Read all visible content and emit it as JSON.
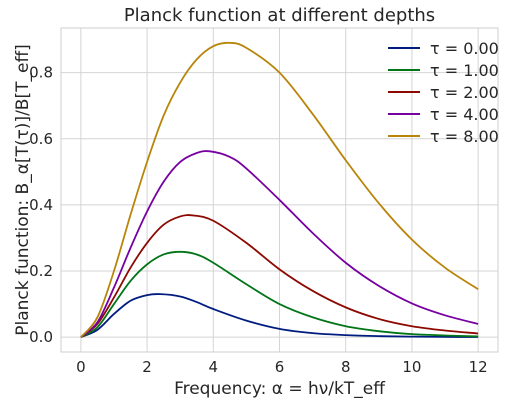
{
  "chart_data": {
    "type": "line",
    "title": "Planck function at different depths",
    "xlabel": "Frequency: α = hν/kT_eff",
    "ylabel": "Planck function: B_α[T(τ)]/B[T_eff]",
    "xlim": [
      -0.6,
      12.6
    ],
    "ylim": [
      -0.045,
      0.935
    ],
    "x_ticks": [
      "0",
      "2",
      "4",
      "6",
      "8",
      "10",
      "12"
    ],
    "y_ticks": [
      "0.0",
      "0.2",
      "0.4",
      "0.6",
      "0.8"
    ],
    "grid": true,
    "legend_position": "top-right",
    "series": [
      {
        "name": "τ = 0.00",
        "color": "#001c7f",
        "x": [
          0,
          0.5,
          1,
          1.5,
          2,
          2.4,
          3,
          3.5,
          4,
          5,
          6,
          7,
          8,
          9,
          10,
          11,
          12
        ],
        "values": [
          0,
          0.022,
          0.07,
          0.11,
          0.127,
          0.13,
          0.123,
          0.106,
          0.085,
          0.05,
          0.025,
          0.012,
          0.006,
          0.003,
          0.0015,
          0.0007,
          0.0003
        ]
      },
      {
        "name": "τ = 1.00",
        "color": "#017517",
        "x": [
          0,
          0.5,
          1,
          1.5,
          2,
          2.5,
          3,
          3.5,
          4,
          5,
          6,
          7,
          8,
          9,
          10,
          11,
          12
        ],
        "values": [
          0,
          0.03,
          0.1,
          0.17,
          0.22,
          0.25,
          0.258,
          0.25,
          0.225,
          0.16,
          0.1,
          0.06,
          0.033,
          0.018,
          0.009,
          0.005,
          0.002
        ]
      },
      {
        "name": "τ = 2.00",
        "color": "#8c0800",
        "x": [
          0,
          0.5,
          1,
          1.5,
          2,
          2.5,
          3,
          3.4,
          4,
          5,
          6,
          7,
          8,
          9,
          10,
          11,
          12
        ],
        "values": [
          0,
          0.04,
          0.12,
          0.21,
          0.285,
          0.34,
          0.365,
          0.368,
          0.352,
          0.285,
          0.205,
          0.14,
          0.09,
          0.055,
          0.033,
          0.02,
          0.011
        ]
      },
      {
        "name": "τ = 4.00",
        "color": "#7600a1",
        "x": [
          0,
          0.5,
          1,
          1.5,
          2,
          2.5,
          3,
          3.5,
          3.9,
          4.5,
          5,
          6,
          7,
          8,
          9,
          10,
          11,
          12
        ],
        "values": [
          0,
          0.045,
          0.15,
          0.27,
          0.38,
          0.47,
          0.53,
          0.557,
          0.562,
          0.545,
          0.51,
          0.415,
          0.315,
          0.225,
          0.155,
          0.102,
          0.066,
          0.04
        ]
      },
      {
        "name": "τ = 8.00",
        "color": "#b8850a",
        "x": [
          0,
          0.5,
          1,
          1.5,
          2,
          2.5,
          3,
          3.5,
          4,
          4.5,
          5,
          6,
          7,
          8,
          9,
          10,
          11,
          12
        ],
        "values": [
          0,
          0.06,
          0.2,
          0.37,
          0.53,
          0.67,
          0.77,
          0.84,
          0.88,
          0.89,
          0.875,
          0.8,
          0.675,
          0.535,
          0.405,
          0.295,
          0.21,
          0.145
        ]
      }
    ]
  }
}
